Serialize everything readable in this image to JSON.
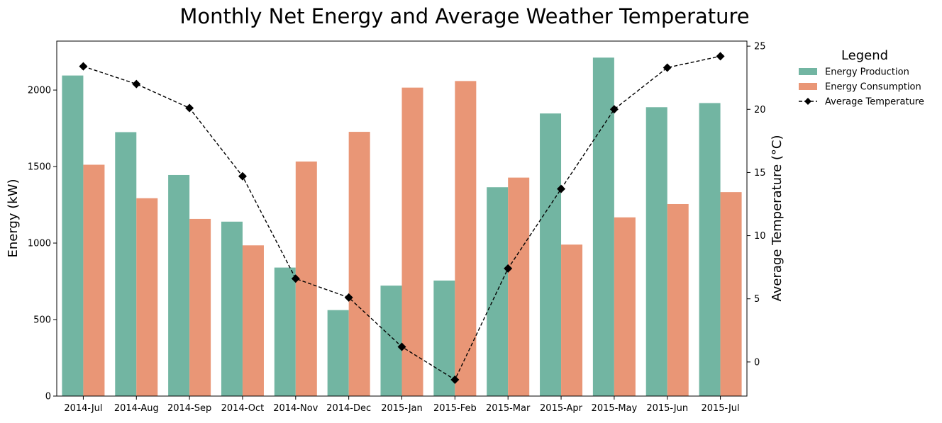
{
  "chart_data": {
    "type": "bar",
    "title": "Monthly Net Energy and Average Weather Temperature",
    "categories": [
      "2014-Jul",
      "2014-Aug",
      "2014-Sep",
      "2014-Oct",
      "2014-Nov",
      "2014-Dec",
      "2015-Jan",
      "2015-Feb",
      "2015-Mar",
      "2015-Apr",
      "2015-May",
      "2015-Jun",
      "2015-Jul"
    ],
    "ylabel": "Energy (kW)",
    "ylim": [
      0,
      2320
    ],
    "yticks": [
      0,
      500,
      1000,
      1500,
      2000
    ],
    "y2label": "Average Temperature (°C)",
    "y2lim": [
      -2.7,
      25.4
    ],
    "y2ticks": [
      0,
      5,
      10,
      15,
      20,
      25
    ],
    "series": [
      {
        "name": "Energy Production",
        "kind": "bar",
        "color": "#72b5a2",
        "values": [
          2095,
          1725,
          1445,
          1140,
          840,
          562,
          722,
          755,
          1365,
          1847,
          2212,
          1888,
          1915
        ]
      },
      {
        "name": "Energy Consumption",
        "kind": "bar",
        "color": "#e99676",
        "values": [
          1512,
          1293,
          1158,
          985,
          1533,
          1727,
          2016,
          2059,
          1428,
          990,
          1168,
          1255,
          1333
        ]
      },
      {
        "name": "Average Temperature",
        "kind": "line",
        "axis": "right",
        "color": "#000000",
        "linestyle": "dashed",
        "marker": "diamond",
        "values": [
          23.4,
          22.0,
          20.1,
          14.7,
          6.6,
          5.1,
          1.2,
          -1.4,
          7.4,
          13.7,
          20.0,
          23.3,
          24.2
        ]
      }
    ],
    "legend": {
      "title": "Legend",
      "placement": "outside-top-right"
    },
    "grid": false
  }
}
